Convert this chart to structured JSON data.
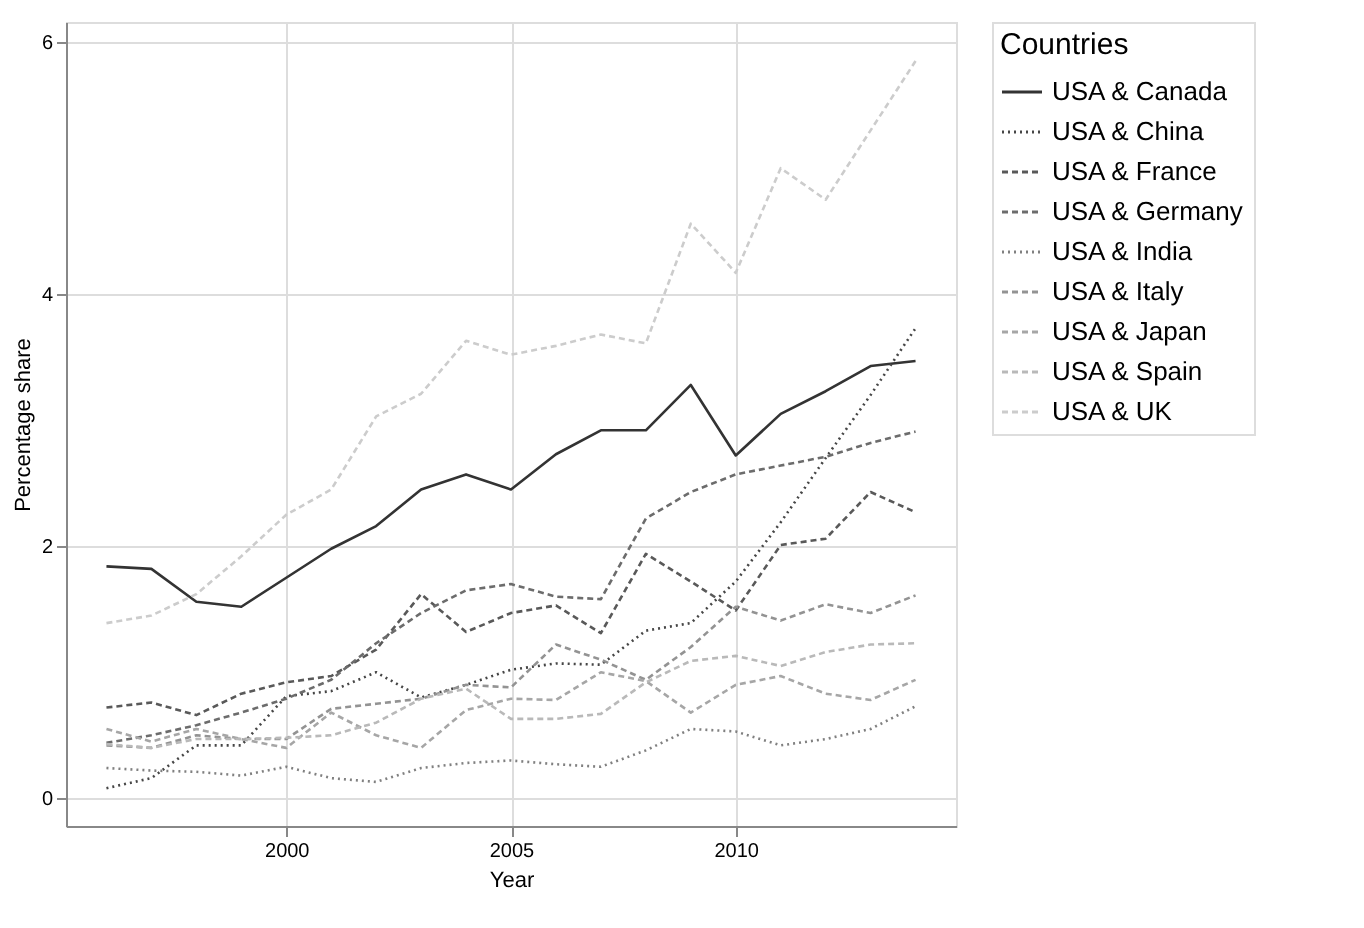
{
  "chart_data": {
    "type": "line",
    "xlabel": "Year",
    "ylabel": "Percentage share",
    "legend_title": "Countries",
    "x": [
      1996,
      1997,
      1998,
      1999,
      2000,
      2001,
      2002,
      2003,
      2004,
      2005,
      2006,
      2007,
      2008,
      2009,
      2010,
      2011,
      2012,
      2013,
      2014
    ],
    "xlim": [
      1995.1,
      2014.9
    ],
    "xticks": [
      2000,
      2005,
      2010
    ],
    "ylim": [
      -0.22,
      6.16
    ],
    "yticks": [
      0,
      2,
      4,
      6
    ],
    "grid": true,
    "legend": "right",
    "marker": "none",
    "series": [
      {
        "name": "USA & Canada",
        "color": "#333333",
        "line_style": "solid",
        "values": [
          1.84,
          1.82,
          1.56,
          1.52,
          1.75,
          1.98,
          2.16,
          2.45,
          2.57,
          2.45,
          2.73,
          2.92,
          2.92,
          3.28,
          2.72,
          3.05,
          3.23,
          3.43,
          3.47
        ]
      },
      {
        "name": "USA & China",
        "color": "#464646",
        "line_style": "dotted",
        "values": [
          0.08,
          0.16,
          0.42,
          0.42,
          0.81,
          0.85,
          1.0,
          0.8,
          0.9,
          1.02,
          1.07,
          1.06,
          1.33,
          1.39,
          1.72,
          2.19,
          2.7,
          3.2,
          3.73
        ]
      },
      {
        "name": "USA & France",
        "color": "#595959",
        "line_style": "dashed",
        "values": [
          0.72,
          0.76,
          0.66,
          0.83,
          0.92,
          0.97,
          1.18,
          1.62,
          1.32,
          1.47,
          1.53,
          1.31,
          1.94,
          1.72,
          1.49,
          2.01,
          2.06,
          2.43,
          2.27
        ]
      },
      {
        "name": "USA & Germany",
        "color": "#6c6c6c",
        "line_style": "dashed",
        "values": [
          0.44,
          0.5,
          0.58,
          0.68,
          0.79,
          0.94,
          1.23,
          1.47,
          1.65,
          1.7,
          1.6,
          1.58,
          2.22,
          2.43,
          2.57,
          2.64,
          2.71,
          2.82,
          2.91
        ]
      },
      {
        "name": "USA & India",
        "color": "#808080",
        "line_style": "dotted",
        "values": [
          0.24,
          0.22,
          0.21,
          0.18,
          0.25,
          0.16,
          0.13,
          0.24,
          0.28,
          0.3,
          0.27,
          0.25,
          0.38,
          0.55,
          0.53,
          0.42,
          0.47,
          0.55,
          0.73
        ]
      },
      {
        "name": "USA & Italy",
        "color": "#939393",
        "line_style": "dashed",
        "values": [
          0.42,
          0.4,
          0.5,
          0.47,
          0.47,
          0.71,
          0.75,
          0.79,
          0.9,
          0.88,
          1.22,
          1.1,
          0.94,
          1.2,
          1.52,
          1.41,
          1.54,
          1.47,
          1.61
        ]
      },
      {
        "name": "USA & Japan",
        "color": "#a6a6a6",
        "line_style": "dashed",
        "values": [
          0.55,
          0.45,
          0.55,
          0.47,
          0.4,
          0.68,
          0.5,
          0.4,
          0.7,
          0.79,
          0.78,
          1.0,
          0.93,
          0.68,
          0.9,
          0.97,
          0.83,
          0.78,
          0.94
        ]
      },
      {
        "name": "USA & Spain",
        "color": "#b9b9b9",
        "line_style": "dashed",
        "values": [
          0.43,
          0.4,
          0.47,
          0.47,
          0.48,
          0.5,
          0.6,
          0.79,
          0.87,
          0.63,
          0.63,
          0.67,
          0.92,
          1.09,
          1.13,
          1.05,
          1.16,
          1.22,
          1.23
        ]
      },
      {
        "name": "USA & UK",
        "color": "#cccccc",
        "line_style": "dashed",
        "values": [
          1.39,
          1.45,
          1.62,
          1.92,
          2.25,
          2.45,
          3.03,
          3.21,
          3.63,
          3.52,
          3.59,
          3.68,
          3.61,
          4.56,
          4.17,
          5.0,
          4.75,
          5.3,
          5.85
        ]
      }
    ]
  }
}
